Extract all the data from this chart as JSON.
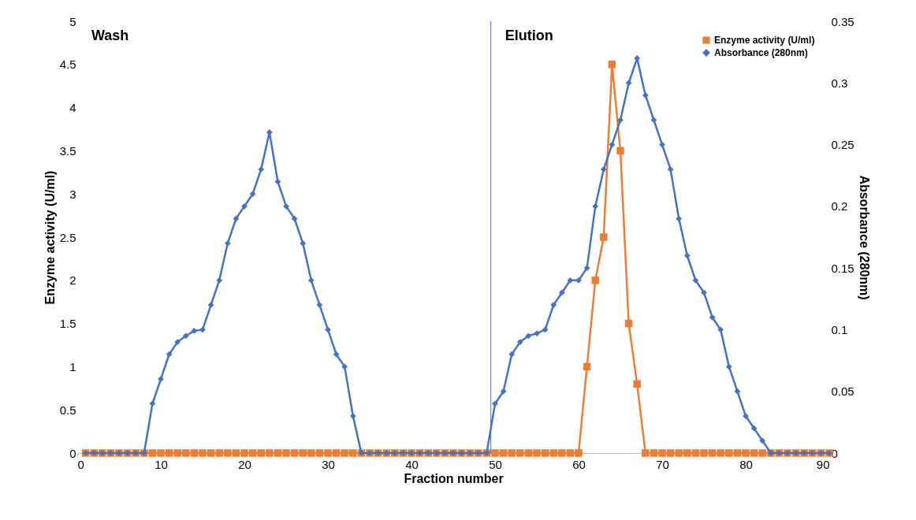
{
  "chart_data": {
    "type": "line",
    "xlabel": "Fraction number",
    "ylabel": "Enzyme activity (U/ml)",
    "y2label": "Absorbance (280nm)",
    "x": [
      1,
      2,
      3,
      4,
      5,
      6,
      7,
      8,
      9,
      10,
      11,
      12,
      13,
      14,
      15,
      16,
      17,
      18,
      19,
      20,
      21,
      22,
      23,
      24,
      25,
      26,
      27,
      28,
      29,
      30,
      31,
      32,
      33,
      34,
      35,
      36,
      37,
      38,
      39,
      40,
      41,
      42,
      43,
      44,
      45,
      46,
      47,
      48,
      49,
      50,
      51,
      52,
      53,
      54,
      55,
      56,
      57,
      58,
      59,
      60,
      61,
      62,
      63,
      64,
      65,
      66,
      67,
      68,
      69,
      70,
      71,
      72,
      73,
      74,
      75,
      76,
      77,
      78,
      79,
      80,
      81,
      82,
      83,
      84,
      85,
      86,
      87,
      88,
      89,
      90
    ],
    "series": [
      {
        "name": "Enzyme activity (U/ml)",
        "color": "#ed7d31",
        "marker": "square",
        "values": [
          0,
          0,
          0,
          0,
          0,
          0,
          0,
          0,
          0,
          0,
          0,
          0,
          0,
          0,
          0,
          0,
          0,
          0,
          0,
          0,
          0,
          0,
          0,
          0,
          0,
          0,
          0,
          0,
          0,
          0,
          0,
          0,
          0,
          0,
          0,
          0,
          0,
          0,
          0,
          0,
          0,
          0,
          0,
          0,
          0,
          0,
          0,
          0,
          0,
          0,
          0,
          0,
          0,
          0,
          0,
          0,
          0,
          0,
          0,
          0,
          1,
          2,
          2.5,
          4.5,
          3.5,
          1.5,
          0.8,
          0,
          0,
          0,
          0,
          0,
          0,
          0,
          0,
          0,
          0,
          0,
          0,
          0,
          0,
          0,
          0,
          0,
          0,
          0,
          0,
          0,
          0,
          0
        ]
      },
      {
        "name": "Absorbance (280nm)",
        "color": "#4472c4",
        "marker": "diamond",
        "axis": "y2",
        "values": [
          0,
          0,
          0,
          0,
          0,
          0,
          0,
          0,
          0.04,
          0.06,
          0.08,
          0.09,
          0.095,
          0.099,
          0.1,
          0.12,
          0.14,
          0.17,
          0.19,
          0.2,
          0.21,
          0.23,
          0.26,
          0.22,
          0.2,
          0.19,
          0.17,
          0.14,
          0.12,
          0.1,
          0.08,
          0.07,
          0.03,
          0,
          0,
          0,
          0,
          0,
          0,
          0,
          0,
          0,
          0,
          0,
          0,
          0,
          0,
          0,
          0,
          0.04,
          0.05,
          0.08,
          0.09,
          0.095,
          0.097,
          0.1,
          0.12,
          0.13,
          0.14,
          0.14,
          0.15,
          0.2,
          0.23,
          0.25,
          0.27,
          0.3,
          0.32,
          0.29,
          0.27,
          0.25,
          0.23,
          0.19,
          0.16,
          0.14,
          0.13,
          0.11,
          0.1,
          0.07,
          0.05,
          0.03,
          0.02,
          0.01,
          0,
          0,
          0,
          0,
          0,
          0,
          0,
          0
        ]
      }
    ],
    "xlim": [
      0,
      90
    ],
    "xticks": [
      0,
      10,
      20,
      30,
      40,
      50,
      60,
      70,
      80,
      90
    ],
    "ylim": [
      0,
      5
    ],
    "yticks": [
      0,
      0.5,
      1,
      1.5,
      2,
      2.5,
      3,
      3.5,
      4,
      4.5,
      5
    ],
    "y2lim": [
      0,
      0.35
    ],
    "y2ticks": [
      0,
      0.05,
      0.1,
      0.15,
      0.2,
      0.25,
      0.3,
      0.35
    ],
    "ref_lines": [
      {
        "axis": "x",
        "value": 49.5,
        "color": "#4472c4"
      }
    ],
    "annotations": [
      "Wash",
      "Elution"
    ],
    "legend": "top right"
  }
}
